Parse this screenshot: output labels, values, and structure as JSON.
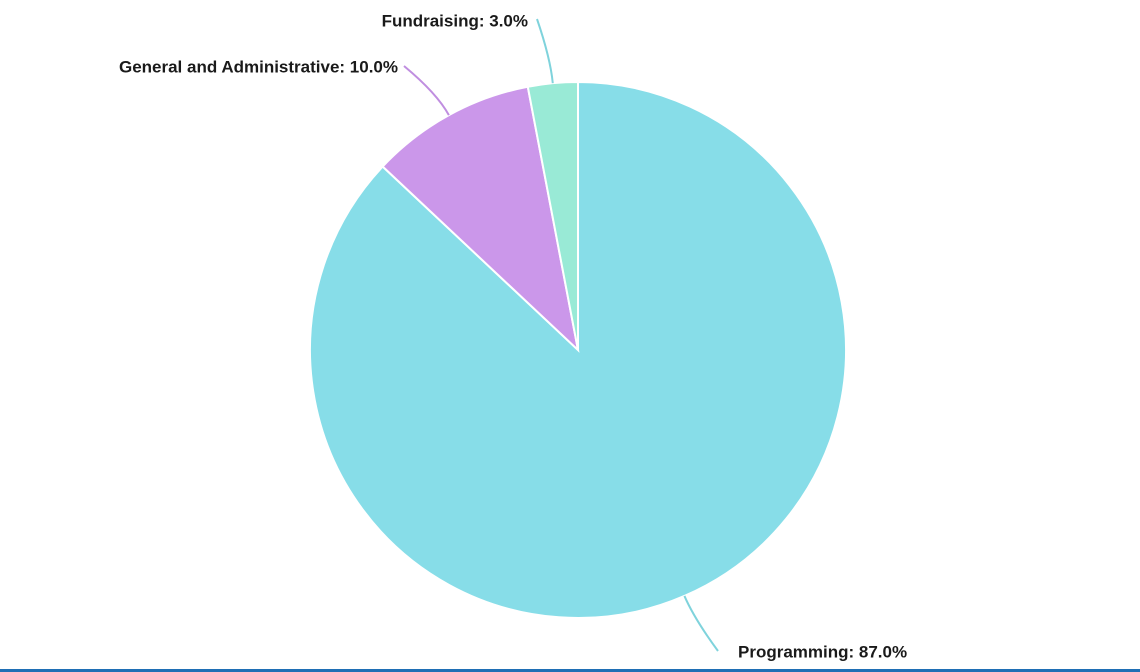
{
  "chart_data": {
    "type": "pie",
    "values": [
      87,
      10,
      3
    ],
    "value_labels": [
      "Programming: 87.0%",
      "General and Administrative: 10.0%",
      "Fundraising: 3.0%"
    ],
    "colors": [
      "#87dde8",
      "#cb97ea",
      "#99ead6"
    ]
  }
}
